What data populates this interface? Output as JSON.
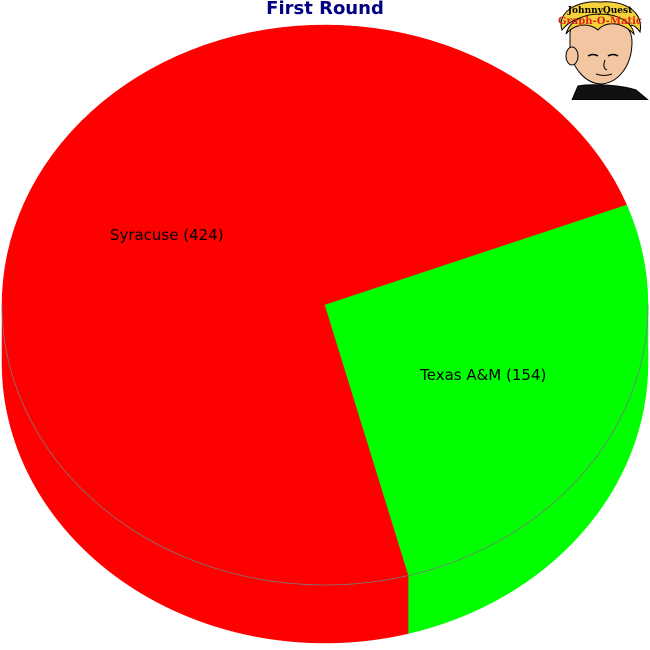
{
  "chart_data": {
    "type": "pie",
    "title": "First Round",
    "slices": [
      {
        "label": "Syracuse (424)",
        "name": "Syracuse",
        "value": 424,
        "color": "#ff0000"
      },
      {
        "label": "Texas A&M (154)",
        "name": "Texas A&M",
        "value": 154,
        "color": "#00ff00"
      }
    ],
    "style": "3d-tilted"
  },
  "colors": {
    "title": "#000080",
    "outline": "#7a7a7a",
    "background": "#ffffff"
  },
  "logo": {
    "line1": "JohnnyQuest",
    "line2": "Graph-O-Matic"
  }
}
